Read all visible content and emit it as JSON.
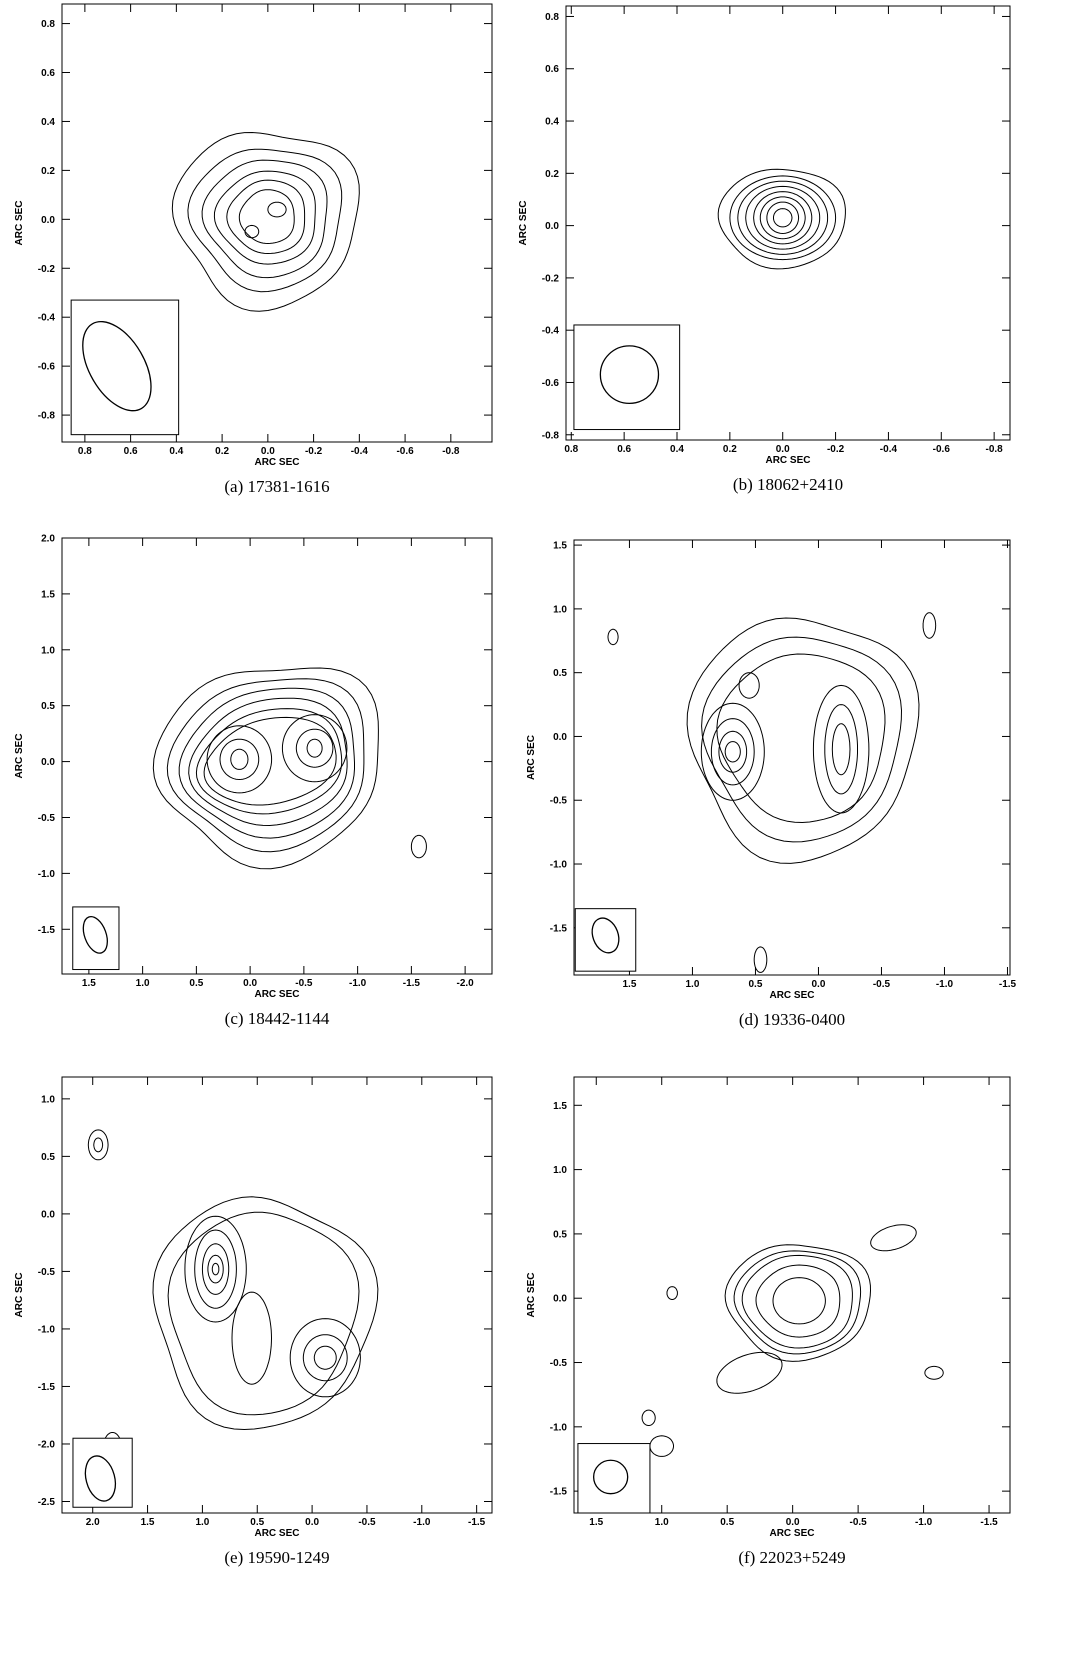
{
  "figure": {
    "x_axis_label": "ARC SEC",
    "y_axis_label": "ARC SEC"
  },
  "chart_data": [
    {
      "type": "contour",
      "caption": "(a)  17381-1616",
      "xlabel": "ARC SEC",
      "ylabel": "ARC SEC",
      "xlim": [
        0.9,
        -0.98
      ],
      "ylim": [
        -0.91,
        0.88
      ],
      "xticks": [
        0.8,
        0.6,
        0.4,
        0.2,
        0.0,
        -0.2,
        -0.4,
        -0.6,
        -0.8
      ],
      "xtick_labels": [
        "0.8",
        "0.6",
        "0.4",
        "0.2",
        "0.0",
        "-0.2",
        "-0.4",
        "-0.6",
        "-0.8"
      ],
      "yticks": [
        0.8,
        0.6,
        0.4,
        0.2,
        0.0,
        -0.2,
        -0.4,
        -0.6,
        -0.8
      ],
      "ytick_labels": [
        "0.8",
        "0.6",
        "0.4",
        "0.2",
        "0.0",
        "-0.2",
        "-0.4",
        "-0.6",
        "-0.8"
      ],
      "components": [
        {
          "x": 0.0,
          "y": 0.01,
          "levels": [
            [
              0.4,
              0.36,
              0.18,
              0.0
            ],
            [
              0.33,
              0.29,
              0.16,
              0.0
            ],
            [
              0.27,
              0.24,
              0.14,
              0.0
            ],
            [
              0.22,
              0.19,
              0.12,
              0.0
            ],
            [
              0.17,
              0.15,
              0.1,
              0.0
            ],
            [
              0.12,
              0.11,
              0.08,
              0.0
            ]
          ]
        },
        {
          "x": -0.04,
          "y": 0.04,
          "levels": [
            [
              0.04,
              0.03,
              0.0,
              0.0
            ]
          ]
        },
        {
          "x": 0.07,
          "y": -0.05,
          "levels": [
            [
              0.03,
              0.025,
              0.0,
              0.0
            ]
          ]
        }
      ],
      "beam": {
        "box": [
          0.86,
          0.39,
          -0.33,
          -0.88
        ],
        "center": [
          0.66,
          -0.6
        ],
        "major": 0.2,
        "minor": 0.12,
        "pa": 30
      }
    },
    {
      "type": "contour",
      "caption": "(b)  18062+2410",
      "xlabel": "ARC SEC",
      "ylabel": "ARC SEC",
      "xlim": [
        0.82,
        -0.86
      ],
      "ylim": [
        -0.82,
        0.84
      ],
      "xticks": [
        0.8,
        0.6,
        0.4,
        0.2,
        0.0,
        -0.2,
        -0.4,
        -0.6,
        -0.8
      ],
      "xtick_labels": [
        "0.8",
        "0.6",
        "0.4",
        "0.2",
        "0.0",
        "-0.2",
        "-0.4",
        "-0.6",
        "-0.8"
      ],
      "yticks": [
        0.8,
        0.6,
        0.4,
        0.2,
        0.0,
        -0.2,
        -0.4,
        -0.6,
        -0.8
      ],
      "ytick_labels": [
        "0.8",
        "0.6",
        "0.4",
        "0.2",
        "0.0",
        "-0.2",
        "-0.4",
        "-0.6",
        "-0.8"
      ],
      "components": [
        {
          "x": 0.0,
          "y": 0.03,
          "levels": [
            [
              0.24,
              0.19,
              0.08,
              0.0
            ],
            [
              0.2,
              0.16,
              0.0,
              0.0
            ],
            [
              0.17,
              0.14,
              0.0,
              0.0
            ],
            [
              0.14,
              0.12,
              0.0,
              0.0
            ],
            [
              0.11,
              0.1,
              0.0,
              0.0
            ],
            [
              0.085,
              0.08,
              0.0,
              0.0
            ],
            [
              0.06,
              0.06,
              0.0,
              0.0
            ],
            [
              0.035,
              0.035,
              0.0,
              0.0
            ]
          ]
        }
      ],
      "beam": {
        "box": [
          0.79,
          0.39,
          -0.38,
          -0.78
        ],
        "center": [
          0.58,
          -0.57
        ],
        "major": 0.11,
        "minor": 0.11,
        "pa": 0
      }
    },
    {
      "type": "contour",
      "caption": "(c)  18442-1144",
      "xlabel": "ARC SEC",
      "ylabel": "ARC SEC",
      "xlim": [
        1.75,
        -2.25
      ],
      "ylim": [
        -1.9,
        2.0
      ],
      "xticks": [
        1.5,
        1.0,
        0.5,
        0.0,
        -0.5,
        -1.0,
        -1.5,
        -2.0
      ],
      "xtick_labels": [
        "1.5",
        "1.0",
        "0.5",
        "0.0",
        "-0.5",
        "-1.0",
        "-1.5",
        "-2.0"
      ],
      "yticks": [
        2.0,
        1.5,
        1.0,
        0.5,
        0.0,
        -0.5,
        -1.0,
        -1.5
      ],
      "ytick_labels": [
        "2.0",
        "1.5",
        "1.0",
        "0.5",
        "0.0",
        "-0.5",
        "-1.0",
        "-1.5"
      ],
      "components": [
        {
          "x": -0.2,
          "y": 0.0,
          "levels": [
            [
              1.05,
              0.88,
              0.18,
              -0.2
            ],
            [
              0.92,
              0.76,
              0.15,
              -0.2
            ],
            [
              0.82,
              0.66,
              0.12,
              -0.2
            ],
            [
              0.74,
              0.56,
              0.1,
              -0.2
            ],
            [
              0.68,
              0.46,
              0.08,
              -0.2
            ],
            [
              0.62,
              0.38,
              0.06,
              -0.2
            ]
          ]
        },
        {
          "x": 0.1,
          "y": 0.02,
          "levels": [
            [
              0.3,
              0.3,
              0.0,
              0.0
            ],
            [
              0.18,
              0.18,
              0.0,
              0.0
            ],
            [
              0.08,
              0.09,
              0.0,
              0.0
            ]
          ]
        },
        {
          "x": -0.6,
          "y": 0.12,
          "levels": [
            [
              0.3,
              0.3,
              0.0,
              0.0
            ],
            [
              0.17,
              0.17,
              0.0,
              0.0
            ],
            [
              0.07,
              0.08,
              0.0,
              0.0
            ]
          ]
        },
        {
          "x": -1.57,
          "y": -0.76,
          "levels": [
            [
              0.07,
              0.1,
              0.0,
              0.0
            ]
          ]
        }
      ],
      "beam": {
        "box": [
          1.65,
          1.22,
          -1.3,
          -1.86
        ],
        "center": [
          1.44,
          -1.55
        ],
        "major": 0.17,
        "minor": 0.1,
        "pa": 20
      }
    },
    {
      "type": "contour",
      "caption": "(d)  19336-0400",
      "xlabel": "ARC SEC",
      "ylabel": "ARC SEC",
      "xlim": [
        1.94,
        -1.52
      ],
      "ylim": [
        -1.87,
        1.54
      ],
      "xticks": [
        1.5,
        1.0,
        0.5,
        0.0,
        -0.5,
        -1.0,
        -1.5
      ],
      "xtick_labels": [
        "1.5",
        "1.0",
        "0.5",
        "0.0",
        "-0.5",
        "-1.0",
        "-1.5"
      ],
      "yticks": [
        1.5,
        1.0,
        0.5,
        0.0,
        -0.5,
        -1.0,
        -1.5
      ],
      "ytick_labels": [
        "1.5",
        "1.0",
        "0.5",
        "0.0",
        "-0.5",
        "-1.0",
        "-1.5"
      ],
      "components": [
        {
          "x": 0.12,
          "y": 0.0,
          "levels": [
            [
              0.9,
              0.95,
              0.15,
              0.1
            ],
            [
              0.78,
              0.8,
              0.12,
              0.1
            ],
            [
              0.66,
              0.66,
              0.1,
              0.1
            ]
          ]
        },
        {
          "x": 0.68,
          "y": -0.12,
          "levels": [
            [
              0.25,
              0.38,
              0.0,
              0.0
            ],
            [
              0.17,
              0.26,
              0.0,
              0.0
            ],
            [
              0.11,
              0.16,
              0.0,
              0.0
            ],
            [
              0.06,
              0.08,
              0.0,
              0.0
            ]
          ]
        },
        {
          "x": -0.18,
          "y": -0.1,
          "levels": [
            [
              0.22,
              0.5,
              0.0,
              0.0
            ],
            [
              0.13,
              0.35,
              0.0,
              0.0
            ],
            [
              0.07,
              0.2,
              0.0,
              0.0
            ]
          ]
        },
        {
          "x": 0.55,
          "y": 0.4,
          "levels": [
            [
              0.08,
              0.1,
              0.0,
              0.0
            ]
          ]
        },
        {
          "x": 1.63,
          "y": 0.78,
          "levels": [
            [
              0.04,
              0.06,
              0.0,
              0.0
            ]
          ]
        },
        {
          "x": -0.88,
          "y": 0.87,
          "levels": [
            [
              0.05,
              0.1,
              0.0,
              0.0
            ]
          ]
        },
        {
          "x": 0.46,
          "y": -1.75,
          "levels": [
            [
              0.05,
              0.1,
              0.0,
              0.0
            ]
          ]
        }
      ],
      "beam": {
        "box": [
          1.93,
          1.45,
          -1.35,
          -1.84
        ],
        "center": [
          1.69,
          -1.56
        ],
        "major": 0.14,
        "minor": 0.1,
        "pa": 20
      }
    },
    {
      "type": "contour",
      "caption": "(e)  19590-1249",
      "xlabel": "ARC SEC",
      "ylabel": "ARC SEC",
      "xlim": [
        2.28,
        -1.64
      ],
      "ylim": [
        -2.6,
        1.19
      ],
      "xticks": [
        2.0,
        1.5,
        1.0,
        0.5,
        0.0,
        -0.5,
        -1.0,
        -1.5
      ],
      "xtick_labels": [
        "2.0",
        "1.5",
        "1.0",
        "0.5",
        "0.0",
        "-0.5",
        "-1.0",
        "-1.5"
      ],
      "yticks": [
        1.0,
        0.5,
        0.0,
        -0.5,
        -1.0,
        -1.5,
        -2.0,
        -2.5
      ],
      "ytick_labels": [
        "1.0",
        "0.5",
        "0.0",
        "-0.5",
        "-1.0",
        "-1.5",
        "-2.0",
        "-2.5"
      ],
      "components": [
        {
          "x": 0.45,
          "y": -0.85,
          "levels": [
            [
              1.0,
              1.0,
              0.15,
              0.25
            ],
            [
              0.85,
              0.88,
              0.12,
              0.25
            ]
          ]
        },
        {
          "x": 0.88,
          "y": -0.48,
          "levels": [
            [
              0.28,
              0.46,
              0.0,
              0.0
            ],
            [
              0.19,
              0.34,
              0.0,
              0.0
            ],
            [
              0.12,
              0.22,
              0.0,
              0.0
            ],
            [
              0.07,
              0.12,
              0.0,
              0.0
            ],
            [
              0.03,
              0.05,
              0.0,
              0.0
            ]
          ]
        },
        {
          "x": -0.12,
          "y": -1.25,
          "levels": [
            [
              0.32,
              0.34,
              0.0,
              0.0
            ],
            [
              0.2,
              0.2,
              0.0,
              0.0
            ],
            [
              0.1,
              0.1,
              0.0,
              0.0
            ]
          ]
        },
        {
          "x": 0.55,
          "y": -1.08,
          "levels": [
            [
              0.18,
              0.4,
              0.0,
              0.0
            ]
          ]
        },
        {
          "x": 1.95,
          "y": 0.6,
          "levels": [
            [
              0.09,
              0.13,
              0.0,
              0.0
            ],
            [
              0.04,
              0.06,
              0.0,
              0.0
            ]
          ]
        },
        {
          "x": 1.82,
          "y": -2.02,
          "levels": [
            [
              0.08,
              0.12,
              0.0,
              0.0
            ]
          ]
        }
      ],
      "beam": {
        "box": [
          2.18,
          1.64,
          -1.95,
          -2.55
        ],
        "center": [
          1.93,
          -2.3
        ],
        "major": 0.2,
        "minor": 0.13,
        "pa": 15
      }
    },
    {
      "type": "contour",
      "caption": "(f)  22023+5249",
      "xlabel": "ARC SEC",
      "ylabel": "ARC SEC",
      "xlim": [
        1.67,
        -1.66
      ],
      "ylim": [
        -1.67,
        1.72
      ],
      "xticks": [
        1.5,
        1.0,
        0.5,
        0.0,
        -0.5,
        -1.0,
        -1.5
      ],
      "xtick_labels": [
        "1.5",
        "1.0",
        "0.5",
        "0.0",
        "-0.5",
        "-1.0",
        "-1.5"
      ],
      "yticks": [
        1.5,
        1.0,
        0.5,
        0.0,
        -0.5,
        -1.0,
        -1.5
      ],
      "ytick_labels": [
        "1.5",
        "1.0",
        "0.5",
        "0.0",
        "-0.5",
        "-1.0",
        "-1.5"
      ],
      "components": [
        {
          "x": -0.05,
          "y": -0.02,
          "levels": [
            [
              0.55,
              0.45,
              0.12,
              0.0
            ],
            [
              0.48,
              0.4,
              0.1,
              0.0
            ],
            [
              0.42,
              0.36,
              0.08,
              0.0
            ],
            [
              0.32,
              0.28,
              0.06,
              0.0
            ],
            [
              0.2,
              0.18,
              0.0,
              0.0
            ]
          ]
        },
        {
          "x": 0.33,
          "y": -0.58,
          "levels": [
            [
              0.26,
              0.14,
              0.0,
              -0.35
            ]
          ]
        },
        {
          "x": -0.77,
          "y": 0.47,
          "levels": [
            [
              0.18,
              0.09,
              0.0,
              -0.3
            ]
          ]
        },
        {
          "x": 1.0,
          "y": -1.15,
          "levels": [
            [
              0.09,
              0.08,
              0.0,
              0.0
            ]
          ]
        },
        {
          "x": 1.1,
          "y": -0.93,
          "levels": [
            [
              0.05,
              0.06,
              0.0,
              0.0
            ]
          ]
        },
        {
          "x": 0.92,
          "y": 0.04,
          "levels": [
            [
              0.04,
              0.05,
              0.0,
              0.0
            ]
          ]
        },
        {
          "x": -1.08,
          "y": -0.58,
          "levels": [
            [
              0.07,
              0.05,
              0.0,
              0.0
            ]
          ]
        }
      ],
      "beam": {
        "box": [
          1.64,
          1.09,
          -1.13,
          -1.67
        ],
        "center": [
          1.39,
          -1.39
        ],
        "major": 0.13,
        "minor": 0.13,
        "pa": 0
      }
    }
  ]
}
